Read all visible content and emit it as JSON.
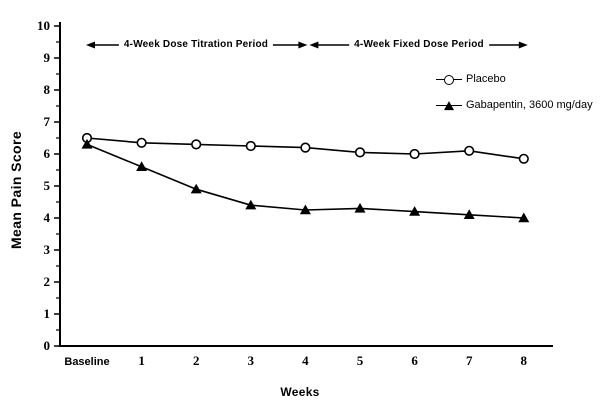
{
  "figure": {
    "background": "#ffffff",
    "ink_color": "#000000"
  },
  "chart_data": {
    "type": "line",
    "title": "",
    "xlabel": "Weeks",
    "ylabel": "Mean Pain Score",
    "categories": [
      "Baseline",
      "1",
      "2",
      "3",
      "4",
      "5",
      "6",
      "7",
      "8"
    ],
    "ylim": [
      0,
      10
    ],
    "y_major_ticks": [
      0,
      1,
      2,
      3,
      4,
      5,
      6,
      7,
      8,
      9,
      10
    ],
    "y_minor_step": 0.5,
    "grid": "off",
    "legend_position": "inside-upper-right",
    "series": [
      {
        "name": "Placebo",
        "marker": "open-circle",
        "color": "#000000",
        "values": [
          6.5,
          6.35,
          6.3,
          6.25,
          6.2,
          6.05,
          6.0,
          6.1,
          5.85
        ]
      },
      {
        "name": "Gabapentin, 3600 mg/day",
        "marker": "filled-triangle",
        "color": "#000000",
        "values": [
          6.3,
          5.6,
          4.9,
          4.4,
          4.25,
          4.3,
          4.2,
          4.1,
          4.0
        ]
      }
    ],
    "annotations": [
      {
        "label": "4-Week Dose Titration Period",
        "x_from": "Baseline",
        "x_to": "4",
        "style": "double-arrow"
      },
      {
        "label": "4-Week Fixed Dose Period",
        "x_from": "4",
        "x_to": "8",
        "style": "double-arrow"
      }
    ]
  }
}
